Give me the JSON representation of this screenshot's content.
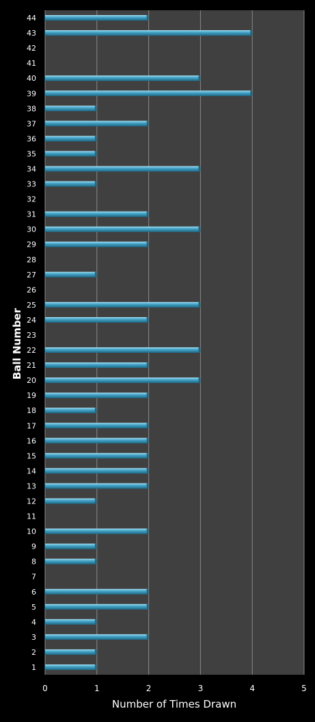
{
  "chart_data": {
    "type": "bar",
    "orientation": "horizontal",
    "xlabel": "Number of Times Drawn",
    "ylabel": "Ball Number",
    "xlim": [
      0,
      5
    ],
    "xticks": [
      "0",
      "1",
      "2",
      "3",
      "4",
      "5"
    ],
    "grid": true,
    "legend": "none",
    "colors": {
      "background": "#000000",
      "plot_area": "#404040",
      "bar": "#4aa9cc",
      "bar_highlight": "#a9e2f5",
      "bar_shadow": "#1c6a88",
      "grid": "#8a8a8a",
      "text": "#ffffff"
    },
    "categories": [
      "1",
      "2",
      "3",
      "4",
      "5",
      "6",
      "7",
      "8",
      "9",
      "10",
      "11",
      "12",
      "13",
      "14",
      "15",
      "16",
      "17",
      "18",
      "19",
      "20",
      "21",
      "22",
      "23",
      "24",
      "25",
      "26",
      "27",
      "28",
      "29",
      "30",
      "31",
      "32",
      "33",
      "34",
      "35",
      "36",
      "37",
      "38",
      "39",
      "40",
      "41",
      "42",
      "43",
      "44"
    ],
    "values": [
      1,
      1,
      2,
      1,
      2,
      2,
      0,
      1,
      1,
      2,
      0,
      1,
      2,
      2,
      2,
      2,
      2,
      1,
      2,
      3,
      2,
      3,
      0,
      2,
      3,
      0,
      1,
      0,
      2,
      3,
      2,
      0,
      1,
      3,
      1,
      1,
      2,
      1,
      4,
      3,
      0,
      0,
      4,
      2
    ]
  }
}
